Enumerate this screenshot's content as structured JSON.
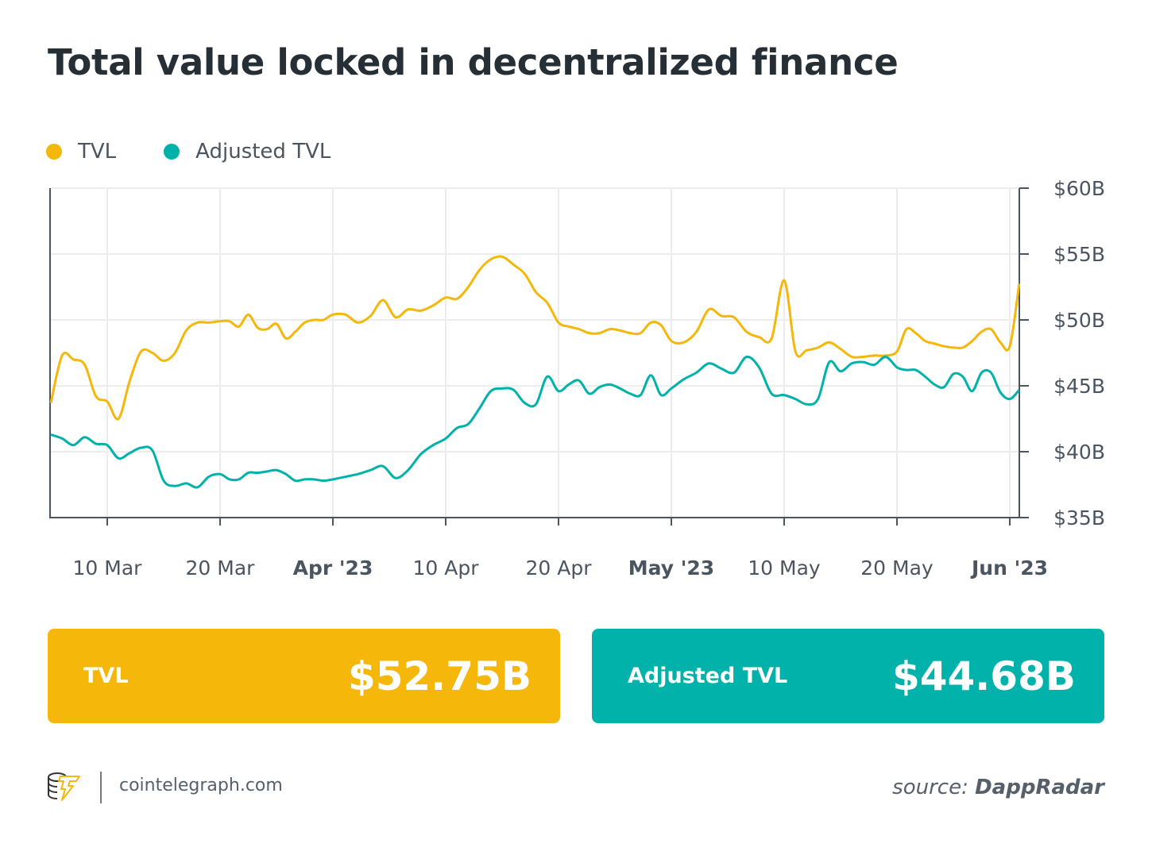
{
  "title": "Total value locked in decentralized finance",
  "colors": {
    "tvl": "#F5B70A",
    "adjusted": "#00B2A9",
    "text": "#262f36"
  },
  "chart_data": {
    "type": "line",
    "ylim": [
      35,
      60
    ],
    "y_ticks": [
      "$35B",
      "$40B",
      "$45B",
      "$50B",
      "$55B",
      "$60B"
    ],
    "y_tick_values": [
      35,
      40,
      45,
      50,
      55,
      60
    ],
    "y_axis_position": "right",
    "x_range": [
      "2023-03-05",
      "2023-06-02"
    ],
    "x_ticks": [
      {
        "date": "2023-03-10",
        "label": "10 Mar",
        "bold": false
      },
      {
        "date": "2023-03-20",
        "label": "20 Mar",
        "bold": false
      },
      {
        "date": "2023-04-01",
        "label": "Apr '23",
        "bold": true
      },
      {
        "date": "2023-04-10",
        "label": "10 Apr",
        "bold": false
      },
      {
        "date": "2023-04-20",
        "label": "20 Apr",
        "bold": false
      },
      {
        "date": "2023-05-01",
        "label": "May '23",
        "bold": true
      },
      {
        "date": "2023-05-10",
        "label": "10 May",
        "bold": false
      },
      {
        "date": "2023-05-20",
        "label": "20 May",
        "bold": false
      },
      {
        "date": "2023-06-01",
        "label": "Jun '23",
        "bold": true
      }
    ],
    "grid": true,
    "legend_placement": "top-left",
    "series": [
      {
        "name": "TVL",
        "color": "#F5B70A",
        "points": [
          [
            "2023-03-05",
            43.7
          ],
          [
            "2023-03-06",
            47.3
          ],
          [
            "2023-03-07",
            47.0
          ],
          [
            "2023-03-08",
            46.6
          ],
          [
            "2023-03-09",
            44.2
          ],
          [
            "2023-03-10",
            43.8
          ],
          [
            "2023-03-11",
            42.5
          ],
          [
            "2023-03-12",
            45.4
          ],
          [
            "2023-03-13",
            47.6
          ],
          [
            "2023-03-14",
            47.5
          ],
          [
            "2023-03-15",
            46.9
          ],
          [
            "2023-03-16",
            47.5
          ],
          [
            "2023-03-17",
            49.2
          ],
          [
            "2023-03-18",
            49.8
          ],
          [
            "2023-03-19",
            49.8
          ],
          [
            "2023-03-20",
            49.9
          ],
          [
            "2023-03-21",
            49.9
          ],
          [
            "2023-03-22",
            49.5
          ],
          [
            "2023-03-23",
            50.4
          ],
          [
            "2023-03-24",
            49.4
          ],
          [
            "2023-03-25",
            49.3
          ],
          [
            "2023-03-26",
            49.7
          ],
          [
            "2023-03-27",
            48.6
          ],
          [
            "2023-03-28",
            49.1
          ],
          [
            "2023-03-29",
            49.8
          ],
          [
            "2023-03-30",
            50.0
          ],
          [
            "2023-03-31",
            50.0
          ],
          [
            "2023-04-01",
            50.4
          ],
          [
            "2023-04-02",
            50.4
          ],
          [
            "2023-04-03",
            49.8
          ],
          [
            "2023-04-04",
            50.3
          ],
          [
            "2023-04-05",
            51.5
          ],
          [
            "2023-04-06",
            50.2
          ],
          [
            "2023-04-07",
            50.8
          ],
          [
            "2023-04-08",
            50.7
          ],
          [
            "2023-04-09",
            51.1
          ],
          [
            "2023-04-10",
            51.7
          ],
          [
            "2023-04-11",
            51.6
          ],
          [
            "2023-04-12",
            52.5
          ],
          [
            "2023-04-13",
            53.8
          ],
          [
            "2023-04-14",
            54.6
          ],
          [
            "2023-04-15",
            54.8
          ],
          [
            "2023-04-16",
            54.2
          ],
          [
            "2023-04-17",
            53.5
          ],
          [
            "2023-04-18",
            52.1
          ],
          [
            "2023-04-19",
            51.3
          ],
          [
            "2023-04-20",
            49.8
          ],
          [
            "2023-04-21",
            49.5
          ],
          [
            "2023-04-22",
            49.3
          ],
          [
            "2023-04-23",
            49.0
          ],
          [
            "2023-04-24",
            49.0
          ],
          [
            "2023-04-25",
            49.3
          ],
          [
            "2023-04-26",
            49.2
          ],
          [
            "2023-04-27",
            49.0
          ],
          [
            "2023-04-28",
            49.0
          ],
          [
            "2023-04-29",
            49.8
          ],
          [
            "2023-04-30",
            49.6
          ],
          [
            "2023-05-01",
            48.4
          ],
          [
            "2023-05-02",
            48.3
          ],
          [
            "2023-05-03",
            49.1
          ],
          [
            "2023-05-04",
            50.8
          ],
          [
            "2023-05-05",
            50.3
          ],
          [
            "2023-05-06",
            50.2
          ],
          [
            "2023-05-07",
            49.1
          ],
          [
            "2023-05-08",
            48.7
          ],
          [
            "2023-05-09",
            48.6
          ],
          [
            "2023-05-10",
            53.0
          ],
          [
            "2023-05-11",
            47.6
          ],
          [
            "2023-05-12",
            47.7
          ],
          [
            "2023-05-13",
            47.9
          ],
          [
            "2023-05-14",
            48.3
          ],
          [
            "2023-05-15",
            47.8
          ],
          [
            "2023-05-16",
            47.2
          ],
          [
            "2023-05-17",
            47.2
          ],
          [
            "2023-05-18",
            47.3
          ],
          [
            "2023-05-19",
            47.3
          ],
          [
            "2023-05-20",
            47.6
          ],
          [
            "2023-05-21",
            49.3
          ],
          [
            "2023-05-22",
            49.0
          ],
          [
            "2023-05-23",
            48.4
          ],
          [
            "2023-05-24",
            48.2
          ],
          [
            "2023-05-25",
            48.0
          ],
          [
            "2023-05-26",
            47.9
          ],
          [
            "2023-05-27",
            47.9
          ],
          [
            "2023-05-28",
            48.4
          ],
          [
            "2023-05-29",
            49.1
          ],
          [
            "2023-05-30",
            49.3
          ],
          [
            "2023-05-31",
            48.3
          ],
          [
            "2023-06-01",
            48.0
          ],
          [
            "2023-06-02",
            52.75
          ]
        ]
      },
      {
        "name": "Adjusted TVL",
        "color": "#00B2A9",
        "points": [
          [
            "2023-03-05",
            41.3
          ],
          [
            "2023-03-06",
            41.0
          ],
          [
            "2023-03-07",
            40.5
          ],
          [
            "2023-03-08",
            41.1
          ],
          [
            "2023-03-09",
            40.6
          ],
          [
            "2023-03-10",
            40.5
          ],
          [
            "2023-03-11",
            39.5
          ],
          [
            "2023-03-12",
            39.9
          ],
          [
            "2023-03-13",
            40.3
          ],
          [
            "2023-03-14",
            40.1
          ],
          [
            "2023-03-15",
            37.8
          ],
          [
            "2023-03-16",
            37.4
          ],
          [
            "2023-03-17",
            37.6
          ],
          [
            "2023-03-18",
            37.3
          ],
          [
            "2023-03-19",
            38.1
          ],
          [
            "2023-03-20",
            38.3
          ],
          [
            "2023-03-21",
            37.9
          ],
          [
            "2023-03-22",
            37.9
          ],
          [
            "2023-03-23",
            38.4
          ],
          [
            "2023-03-24",
            38.4
          ],
          [
            "2023-03-25",
            38.5
          ],
          [
            "2023-03-26",
            38.6
          ],
          [
            "2023-03-27",
            38.3
          ],
          [
            "2023-03-28",
            37.8
          ],
          [
            "2023-03-29",
            37.9
          ],
          [
            "2023-03-30",
            37.9
          ],
          [
            "2023-03-31",
            37.8
          ],
          [
            "2023-04-01",
            37.9
          ],
          [
            "2023-04-02",
            38.1
          ],
          [
            "2023-04-03",
            38.3
          ],
          [
            "2023-04-04",
            38.6
          ],
          [
            "2023-04-05",
            38.9
          ],
          [
            "2023-04-06",
            38.0
          ],
          [
            "2023-04-07",
            38.6
          ],
          [
            "2023-04-08",
            39.8
          ],
          [
            "2023-04-09",
            40.5
          ],
          [
            "2023-04-10",
            41.0
          ],
          [
            "2023-04-11",
            41.8
          ],
          [
            "2023-04-12",
            42.1
          ],
          [
            "2023-04-13",
            43.3
          ],
          [
            "2023-04-14",
            44.6
          ],
          [
            "2023-04-15",
            44.8
          ],
          [
            "2023-04-16",
            44.7
          ],
          [
            "2023-04-17",
            43.7
          ],
          [
            "2023-04-18",
            43.6
          ],
          [
            "2023-04-19",
            45.7
          ],
          [
            "2023-04-20",
            44.6
          ],
          [
            "2023-04-21",
            45.1
          ],
          [
            "2023-04-22",
            45.4
          ],
          [
            "2023-04-23",
            44.4
          ],
          [
            "2023-04-24",
            44.9
          ],
          [
            "2023-04-25",
            45.1
          ],
          [
            "2023-04-26",
            44.8
          ],
          [
            "2023-04-27",
            44.4
          ],
          [
            "2023-04-28",
            44.3
          ],
          [
            "2023-04-29",
            45.8
          ],
          [
            "2023-04-30",
            44.3
          ],
          [
            "2023-05-01",
            44.8
          ],
          [
            "2023-05-02",
            45.5
          ],
          [
            "2023-05-03",
            46.0
          ],
          [
            "2023-05-04",
            46.7
          ],
          [
            "2023-05-05",
            46.3
          ],
          [
            "2023-05-06",
            46.0
          ],
          [
            "2023-05-07",
            47.2
          ],
          [
            "2023-05-08",
            46.4
          ],
          [
            "2023-05-09",
            44.4
          ],
          [
            "2023-05-10",
            44.3
          ],
          [
            "2023-05-11",
            44.0
          ],
          [
            "2023-05-12",
            43.6
          ],
          [
            "2023-05-13",
            44.0
          ],
          [
            "2023-05-14",
            46.8
          ],
          [
            "2023-05-15",
            46.1
          ],
          [
            "2023-05-16",
            46.7
          ],
          [
            "2023-05-17",
            46.8
          ],
          [
            "2023-05-18",
            46.6
          ],
          [
            "2023-05-19",
            47.2
          ],
          [
            "2023-05-20",
            46.4
          ],
          [
            "2023-05-21",
            46.2
          ],
          [
            "2023-05-22",
            46.2
          ],
          [
            "2023-05-23",
            45.7
          ],
          [
            "2023-05-24",
            45.1
          ],
          [
            "2023-05-25",
            44.9
          ],
          [
            "2023-05-26",
            45.9
          ],
          [
            "2023-05-27",
            45.7
          ],
          [
            "2023-05-28",
            44.6
          ],
          [
            "2023-05-29",
            46.0
          ],
          [
            "2023-05-30",
            46.0
          ],
          [
            "2023-05-31",
            44.5
          ],
          [
            "2023-06-01",
            44.0
          ],
          [
            "2023-06-02",
            44.68
          ]
        ]
      }
    ]
  },
  "legend": [
    {
      "label": "TVL"
    },
    {
      "label": "Adjusted TVL"
    }
  ],
  "cards": [
    {
      "label": "TVL",
      "value": "$52.75B"
    },
    {
      "label": "Adjusted TVL",
      "value": "$44.68B"
    }
  ],
  "footer": {
    "site": "cointelegraph.com",
    "source_prefix": "source:",
    "source_name": "DappRadar"
  }
}
